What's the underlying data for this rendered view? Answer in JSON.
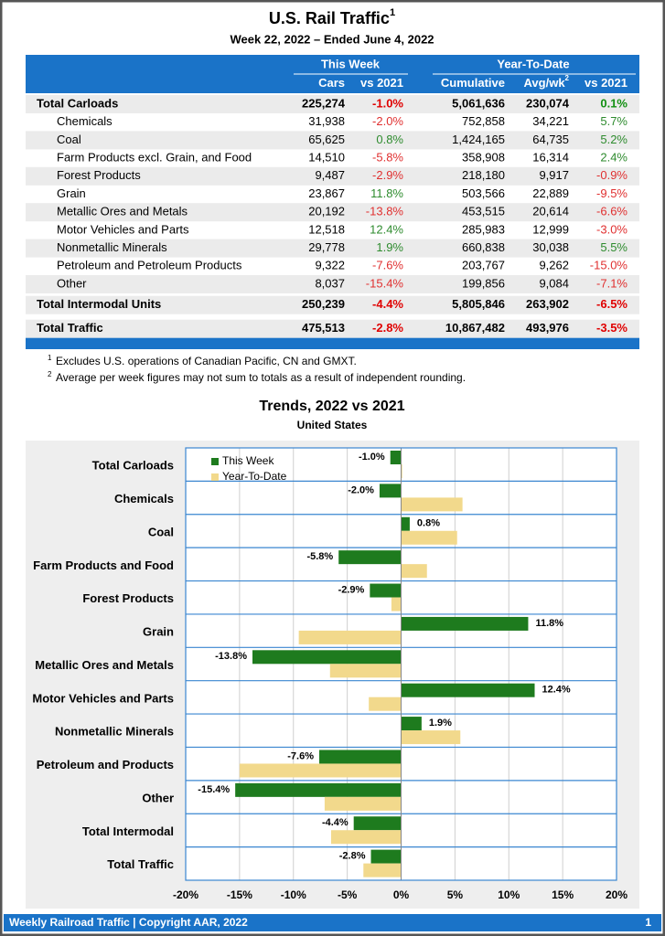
{
  "header": {
    "title": "U.S. Rail Traffic",
    "title_note": "1",
    "subtitle": "Week 22, 2022 – Ended June 4, 2022"
  },
  "table": {
    "groups": [
      "This Week",
      "Year-To-Date"
    ],
    "columns": [
      "Cars",
      "vs 2021",
      "Cumulative",
      "Avg/wk",
      "vs 2021"
    ],
    "avg_note": "2",
    "sections": [
      {
        "total": [
          "Total Carloads",
          "225,274",
          "-1.0%",
          "5,061,636",
          "230,074",
          "0.1%"
        ],
        "rows": [
          [
            "Chemicals",
            "31,938",
            "-2.0%",
            "752,858",
            "34,221",
            "5.7%"
          ],
          [
            "Coal",
            "65,625",
            "0.8%",
            "1,424,165",
            "64,735",
            "5.2%"
          ],
          [
            "Farm Products excl. Grain, and Food",
            "14,510",
            "-5.8%",
            "358,908",
            "16,314",
            "2.4%"
          ],
          [
            "Forest Products",
            "9,487",
            "-2.9%",
            "218,180",
            "9,917",
            "-0.9%"
          ],
          [
            "Grain",
            "23,867",
            "11.8%",
            "503,566",
            "22,889",
            "-9.5%"
          ],
          [
            "Metallic Ores and Metals",
            "20,192",
            "-13.8%",
            "453,515",
            "20,614",
            "-6.6%"
          ],
          [
            "Motor Vehicles and Parts",
            "12,518",
            "12.4%",
            "285,983",
            "12,999",
            "-3.0%"
          ],
          [
            "Nonmetallic Minerals",
            "29,778",
            "1.9%",
            "660,838",
            "30,038",
            "5.5%"
          ],
          [
            "Petroleum and Petroleum Products",
            "9,322",
            "-7.6%",
            "203,767",
            "9,262",
            "-15.0%"
          ],
          [
            "Other",
            "8,037",
            "-15.4%",
            "199,856",
            "9,084",
            "-7.1%"
          ]
        ]
      },
      {
        "total": [
          "Total Intermodal Units",
          "250,239",
          "-4.4%",
          "5,805,846",
          "263,902",
          "-6.5%"
        ]
      },
      {
        "total": [
          "Total Traffic",
          "475,513",
          "-2.8%",
          "10,867,482",
          "493,976",
          "-3.5%"
        ]
      }
    ]
  },
  "footnotes": [
    {
      "mark": "1",
      "text": "Excludes U.S. operations of Canadian Pacific, CN and GMXT."
    },
    {
      "mark": "2",
      "text": "Average per week figures may not sum to totals as a result of independent rounding."
    }
  ],
  "chart_data": {
    "type": "hbar",
    "title": "Trends, 2022 vs 2021",
    "subtitle": "United States",
    "categories": [
      "Total Carloads",
      "Chemicals",
      "Coal",
      "Farm Products and Food",
      "Forest Products",
      "Grain",
      "Metallic Ores and Metals",
      "Motor Vehicles and Parts",
      "Nonmetallic Minerals",
      "Petroleum and Products",
      "Other",
      "Total Intermodal",
      "Total Traffic"
    ],
    "series": [
      {
        "name": "This Week",
        "color": "#1e7b1e",
        "values": [
          -1.0,
          -2.0,
          0.8,
          -5.8,
          -2.9,
          11.8,
          -13.8,
          12.4,
          1.9,
          -7.6,
          -15.4,
          -4.4,
          -2.8
        ],
        "value_labels": [
          "-1.0%",
          "-2.0%",
          "0.8%",
          "-5.8%",
          "-2.9%",
          "11.8%",
          "-13.8%",
          "12.4%",
          "1.9%",
          "-7.6%",
          "-15.4%",
          "-4.4%",
          "-2.8%"
        ]
      },
      {
        "name": "Year-To-Date",
        "color": "#f2d98c",
        "values": [
          0.1,
          5.7,
          5.2,
          2.4,
          -0.9,
          -9.5,
          -6.6,
          -3.0,
          5.5,
          -15.0,
          -7.1,
          -6.5,
          -3.5
        ]
      }
    ],
    "xlim": [
      -20,
      20
    ],
    "xticks": [
      {
        "value": -20,
        "label": "-20%"
      },
      {
        "value": -15,
        "label": "-15%"
      },
      {
        "value": -10,
        "label": "-10%"
      },
      {
        "value": -5,
        "label": "-5%"
      },
      {
        "value": 0,
        "label": "0%"
      },
      {
        "value": 5,
        "label": "5%"
      },
      {
        "value": 10,
        "label": "10%"
      },
      {
        "value": 15,
        "label": "15%"
      },
      {
        "value": 20,
        "label": "20%"
      }
    ],
    "grid": true,
    "legend": "upper left"
  },
  "footer": {
    "text": "Weekly Railroad Traffic | Copyright AAR, 2022",
    "page": "1"
  }
}
